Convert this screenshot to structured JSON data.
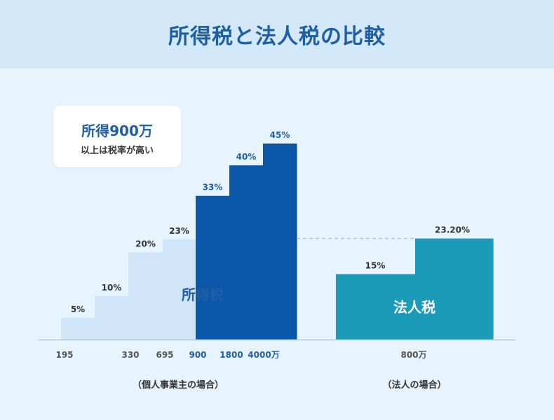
{
  "header": {
    "title": "所得税と法人税の比較"
  },
  "callout": {
    "title": "所得900万",
    "subtitle": "以上は税率が高い"
  },
  "chart_data": [
    {
      "type": "bar",
      "title": "所得税",
      "caption": "（個人事業主の場合）",
      "categories": [
        "195",
        "330",
        "695",
        "900",
        "1800",
        "4000万"
      ],
      "tiers": [
        {
          "tick": "195",
          "rate_label": "5%",
          "value": 5,
          "color": "#d0e5f8"
        },
        {
          "tick": "",
          "rate_label": "10%",
          "value": 10,
          "color": "#d0e5f8"
        },
        {
          "tick": "330",
          "rate_label": "20%",
          "value": 20,
          "color": "#d0e5f8"
        },
        {
          "tick": "695",
          "rate_label": "23%",
          "value": 23,
          "color": "#d0e5f8"
        },
        {
          "tick": "900",
          "rate_label": "33%",
          "value": 33,
          "color": "#0a57aa"
        },
        {
          "tick": "1800",
          "rate_label": "40%",
          "value": 40,
          "color": "#0a57aa"
        },
        {
          "tick": "4000万",
          "rate_label": "45%",
          "value": 45,
          "color": "#0a57aa"
        }
      ],
      "highlight_color": "#0a57aa",
      "base_color": "#d0e5f8"
    },
    {
      "type": "bar",
      "title": "法人税",
      "caption": "（法人の場合）",
      "categories": [
        "800万"
      ],
      "tiers": [
        {
          "tick": "",
          "rate_label": "15%",
          "value": 15,
          "color": "#1b9bb8"
        },
        {
          "tick": "800万",
          "rate_label": "23.20%",
          "value": 23.2,
          "color": "#1b9bb8"
        }
      ],
      "color": "#1b9bb8"
    }
  ]
}
